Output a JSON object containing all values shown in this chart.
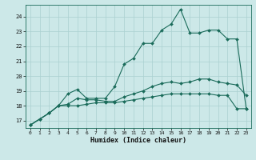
{
  "xlabel": "Humidex (Indice chaleur)",
  "bg_color": "#cce8e8",
  "line_color": "#1a6b5a",
  "grid_color": "#aad0d0",
  "xlim": [
    -0.5,
    23.5
  ],
  "ylim": [
    16.5,
    24.8
  ],
  "yticks": [
    17,
    18,
    19,
    20,
    21,
    22,
    23,
    24
  ],
  "xticks": [
    0,
    1,
    2,
    3,
    4,
    5,
    6,
    7,
    8,
    9,
    10,
    11,
    12,
    13,
    14,
    15,
    16,
    17,
    18,
    19,
    20,
    21,
    22,
    23
  ],
  "xa": [
    0,
    1,
    2,
    3,
    4,
    5,
    6,
    7,
    8,
    9,
    10,
    11,
    12,
    13,
    14,
    15,
    16,
    17,
    18,
    19,
    20,
    21,
    22,
    23
  ],
  "ya": [
    16.7,
    17.1,
    17.5,
    18.0,
    18.0,
    18.0,
    18.1,
    18.2,
    18.2,
    18.2,
    18.3,
    18.4,
    18.5,
    18.6,
    18.7,
    18.8,
    18.8,
    18.8,
    18.8,
    18.8,
    18.7,
    18.7,
    17.8,
    17.8
  ],
  "xb": [
    0,
    1,
    2,
    3,
    4,
    5,
    6,
    7,
    8,
    9,
    10,
    11,
    12,
    13,
    14,
    15,
    16,
    17,
    18,
    19,
    20,
    21,
    22,
    23
  ],
  "yb": [
    16.7,
    17.1,
    17.5,
    18.0,
    18.1,
    18.5,
    18.4,
    18.4,
    18.3,
    18.3,
    18.6,
    18.8,
    19.0,
    19.3,
    19.5,
    19.6,
    19.5,
    19.6,
    19.8,
    19.8,
    19.6,
    19.5,
    19.4,
    18.7
  ],
  "xc": [
    0,
    1,
    2,
    3,
    4,
    5,
    6,
    7,
    8,
    9,
    10,
    11,
    12,
    13,
    14,
    15,
    16,
    17,
    18,
    19,
    20,
    21,
    22,
    23
  ],
  "yc": [
    16.7,
    17.1,
    17.5,
    18.0,
    18.8,
    19.1,
    18.5,
    18.5,
    18.5,
    19.3,
    20.8,
    21.2,
    22.2,
    22.2,
    23.1,
    23.5,
    24.5,
    22.9,
    22.9,
    23.1,
    23.1,
    22.5,
    22.5,
    17.8
  ]
}
